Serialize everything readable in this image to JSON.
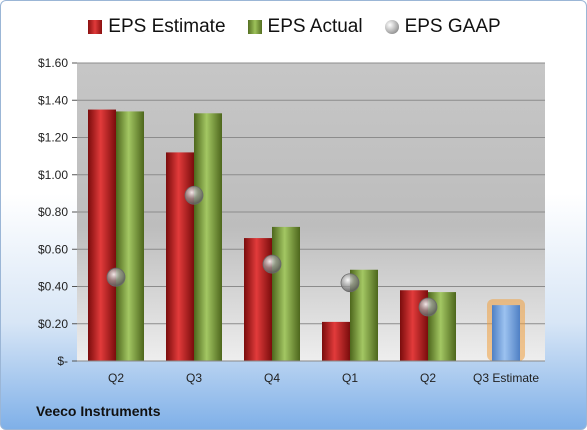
{
  "company": "Veeco Instruments",
  "chart_data": {
    "type": "bar",
    "categories": [
      "Q2",
      "Q3",
      "Q4",
      "Q1",
      "Q2",
      "Q3 Estimate"
    ],
    "series": [
      {
        "name": "EPS Estimate",
        "color": "#c81e1e",
        "values": [
          1.35,
          1.12,
          0.66,
          0.21,
          0.38,
          null
        ]
      },
      {
        "name": "EPS Actual",
        "color": "#7ea23a",
        "values": [
          1.34,
          1.33,
          0.72,
          0.49,
          0.37,
          null
        ]
      },
      {
        "name": "EPS GAAP",
        "color": "#a8a8a8",
        "marker": "circle",
        "values": [
          0.45,
          0.89,
          0.52,
          0.42,
          0.29,
          null
        ]
      }
    ],
    "estimate": {
      "category": "Q3 Estimate",
      "value": 0.3,
      "color": "#7aa7e0",
      "glow": "#f0a040"
    },
    "ylim": [
      0,
      1.6
    ],
    "yticks": [
      "$-",
      "$0.20",
      "$0.40",
      "$0.60",
      "$0.80",
      "$1.00",
      "$1.20",
      "$1.40",
      "$1.60"
    ],
    "grid": true,
    "legend_position": "top"
  }
}
